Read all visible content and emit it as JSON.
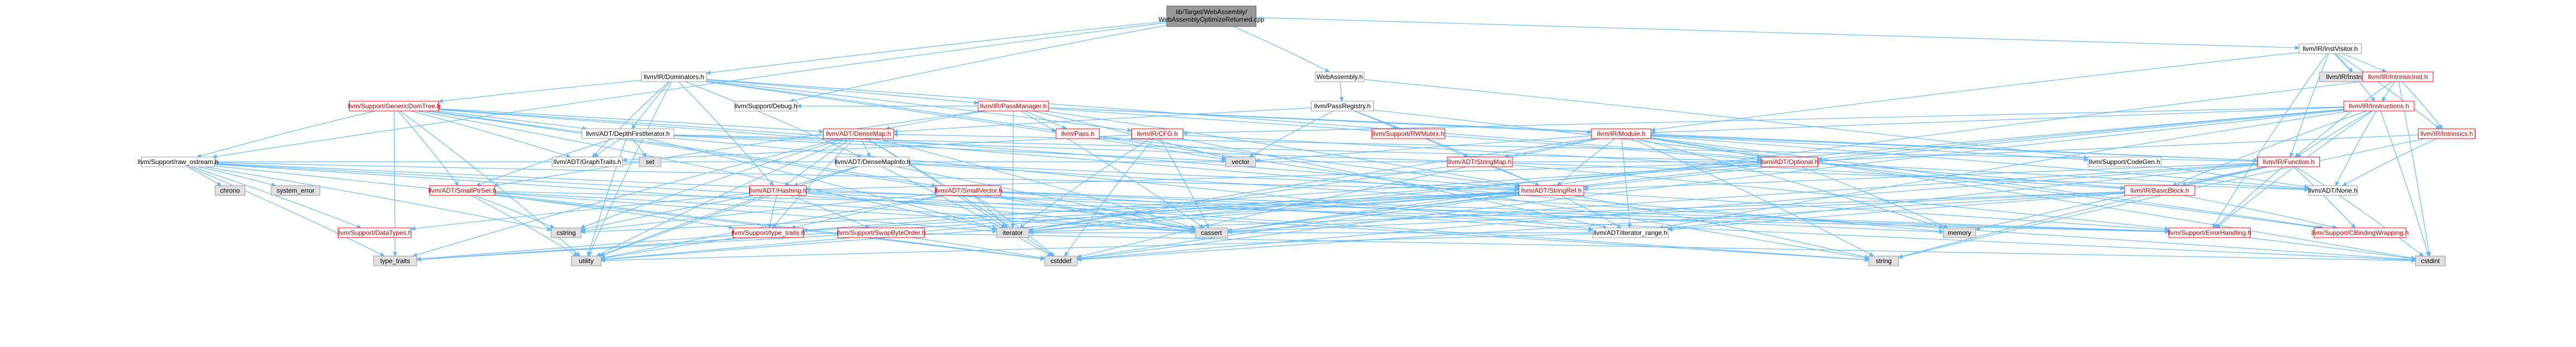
{
  "colors": {
    "edge": "#63b8ff",
    "node_border": "#999999",
    "root_fill": "#999999",
    "truncated_border": "#ff0000",
    "truncated_text": "#bf0000",
    "external_fill": "#e0e0e0"
  },
  "nodes": {
    "root": "lib/Target/WebAssembly/WebAssemblyOptimizeReturned.cpp",
    "dominators": "llvm/IR/Dominators.h",
    "instvisitor": "llvm/IR/InstVisitor.h",
    "webassembly": "WebAssembly.h",
    "raw_ostream": "llvm/Support/raw_ostream.h",
    "debug": "llvm/Support/Debug.h",
    "genericdomtree": "llvm/Support/GenericDomTree.h",
    "passmanager": "llvm/IR/PassManager.h",
    "passregistry": "llvm/PassRegistry.h",
    "instructiondef": "llvm/IR/Instruction.def",
    "intrinsicinst": "llvm/IR/IntrinsicInst.h",
    "instructions": "llvm/IR/Instructions.h",
    "intrinsics": "llvm/IR/Intrinsics.h",
    "depthfirst": "llvm/ADT/DepthFirstIterator.h",
    "densemap": "llvm/ADT/DenseMap.h",
    "pass": "llvm/Pass.h",
    "cfg": "llvm/IR/CFG.h",
    "pmutex": "llvm/Support/RWMutex.h",
    "module": "llvm/IR/Module.h",
    "codegen": "llvm/Support/CodeGen.h",
    "function": "llvm/IR/Function.h",
    "graphtraits": "llvm/ADT/GraphTraits.h",
    "set": "set",
    "vector": "vector",
    "densemapinfo": "llvm/ADT/DenseMapInfo.h",
    "stringmap": "llvm/ADT/StringMap.h",
    "optional": "llvm/ADT/Optional.h",
    "basicblock": "llvm/IR/BasicBlock.h",
    "none": "llvm/ADT/None.h",
    "smallptrset": "llvm/ADT/SmallPtrSet.h",
    "hashing": "llvm/ADT/Hashing.h",
    "smallvector": "llvm/ADT/SmallVector.h",
    "stringref": "llvm/ADT/StringRef.h",
    "chrono": "chrono",
    "system_error": "system_error",
    "datatypes": "llvm/Support/DataTypes.h",
    "cstring": "cstring",
    "type_traits_h": "llvm/Support/type_traits.h",
    "swapbyteorder": "llvm/Support/SwapByteOrder.h",
    "iterator": "iterator",
    "cassert": "cassert",
    "iterator_range": "llvm/ADT/iterator_range.h",
    "memory": "memory",
    "errorhandling": "llvm/Support/ErrorHandling.h",
    "cbindingwrapping": "llvm/Support/CBindingWrapping.h",
    "type_traits": "type_traits",
    "utility": "utility",
    "cstddef": "cstddef",
    "string": "string",
    "cstdint": "cstdint"
  },
  "edges": [
    [
      "root",
      "dominators"
    ],
    [
      "root",
      "instvisitor"
    ],
    [
      "root",
      "webassembly"
    ],
    [
      "root",
      "raw_ostream"
    ],
    [
      "root",
      "debug"
    ],
    [
      "dominators",
      "genericdomtree"
    ],
    [
      "dominators",
      "passmanager"
    ],
    [
      "dominators",
      "depthfirst"
    ],
    [
      "dominators",
      "graphtraits"
    ],
    [
      "dominators",
      "cfg"
    ],
    [
      "dominators",
      "pass"
    ],
    [
      "dominators",
      "hashing"
    ],
    [
      "dominators",
      "densemapinfo"
    ],
    [
      "dominators",
      "utility"
    ],
    [
      "dominators",
      "vector"
    ],
    [
      "dominators",
      "basicblock"
    ],
    [
      "instvisitor",
      "function"
    ],
    [
      "instvisitor",
      "instructions"
    ],
    [
      "instvisitor",
      "intrinsicinst"
    ],
    [
      "instvisitor",
      "intrinsics"
    ],
    [
      "instvisitor",
      "module"
    ],
    [
      "instvisitor",
      "errorhandling"
    ],
    [
      "instvisitor",
      "instructiondef"
    ],
    [
      "webassembly",
      "passregistry"
    ],
    [
      "webassembly",
      "codegen"
    ],
    [
      "raw_ostream",
      "stringref"
    ],
    [
      "raw_ostream",
      "datatypes"
    ],
    [
      "raw_ostream",
      "cassert"
    ],
    [
      "raw_ostream",
      "chrono"
    ],
    [
      "raw_ostream",
      "cstddef"
    ],
    [
      "raw_ostream",
      "cstdint"
    ],
    [
      "raw_ostream",
      "cstring"
    ],
    [
      "raw_ostream",
      "string"
    ],
    [
      "raw_ostream",
      "system_error"
    ],
    [
      "raw_ostream",
      "type_traits"
    ],
    [
      "raw_ostream",
      "optional"
    ],
    [
      "genericdomtree",
      "densemap"
    ],
    [
      "genericdomtree",
      "graphtraits"
    ],
    [
      "genericdomtree",
      "raw_ostream"
    ],
    [
      "genericdomtree",
      "smallptrset"
    ],
    [
      "genericdomtree",
      "smallvector"
    ],
    [
      "genericdomtree",
      "cassert"
    ],
    [
      "genericdomtree",
      "iterator"
    ],
    [
      "genericdomtree",
      "memory"
    ],
    [
      "genericdomtree",
      "type_traits"
    ],
    [
      "genericdomtree",
      "utility"
    ],
    [
      "genericdomtree",
      "depthfirst"
    ],
    [
      "genericdomtree",
      "stringref"
    ],
    [
      "passmanager",
      "densemap"
    ],
    [
      "passmanager",
      "function"
    ],
    [
      "passmanager",
      "module"
    ],
    [
      "passmanager",
      "pass"
    ],
    [
      "passmanager",
      "smallptrset"
    ],
    [
      "passmanager",
      "debug"
    ],
    [
      "passmanager",
      "typeid"
    ],
    [
      "passmanager",
      "vector"
    ],
    [
      "passmanager",
      "cassert"
    ],
    [
      "passmanager",
      "iterator"
    ],
    [
      "passmanager",
      "stringref"
    ],
    [
      "passmanager",
      "optional"
    ],
    [
      "passregistry",
      "densemap"
    ],
    [
      "passregistry",
      "stringmap"
    ],
    [
      "passregistry",
      "pmutex"
    ],
    [
      "passregistry",
      "cbindingwrapping"
    ],
    [
      "passregistry",
      "vector"
    ],
    [
      "passregistry",
      "stringref"
    ],
    [
      "intrinsicinst",
      "instructions"
    ],
    [
      "intrinsicinst",
      "function"
    ],
    [
      "intrinsicinst",
      "intrinsics"
    ],
    [
      "intrinsicinst",
      "cassert"
    ],
    [
      "intrinsicinst",
      "cstdint"
    ],
    [
      "instructions",
      "function"
    ],
    [
      "instructions",
      "module"
    ],
    [
      "instructions",
      "cfg"
    ],
    [
      "instructions",
      "none"
    ],
    [
      "instructions",
      "iterator_range"
    ],
    [
      "instructions",
      "stringref"
    ],
    [
      "instructions",
      "cstdint"
    ],
    [
      "instructions",
      "cstddef"
    ],
    [
      "instructions",
      "iterator"
    ],
    [
      "instructions",
      "errorhandling"
    ],
    [
      "instructions",
      "optional"
    ],
    [
      "instructions",
      "basicblock"
    ],
    [
      "intrinsics",
      "none"
    ],
    [
      "intrinsics",
      "optional"
    ],
    [
      "intrinsics",
      "string"
    ],
    [
      "depthfirst",
      "graphtraits"
    ],
    [
      "depthfirst",
      "none"
    ],
    [
      "depthfirst",
      "optional"
    ],
    [
      "depthfirst",
      "smallptrset"
    ],
    [
      "depthfirst",
      "iterator_range"
    ],
    [
      "depthfirst",
      "iterator"
    ],
    [
      "depthfirst",
      "set"
    ],
    [
      "depthfirst",
      "utility"
    ],
    [
      "depthfirst",
      "vector"
    ],
    [
      "densemap",
      "densemapinfo"
    ],
    [
      "densemap",
      "type_traits_h"
    ],
    [
      "densemap",
      "cassert"
    ],
    [
      "densemap",
      "cstddef"
    ],
    [
      "densemap",
      "cstring"
    ],
    [
      "densemap",
      "iterator"
    ],
    [
      "densemap",
      "new"
    ],
    [
      "densemap",
      "type_traits"
    ],
    [
      "densemap",
      "utility"
    ],
    [
      "densemap",
      "hashing"
    ],
    [
      "pass",
      "stringref"
    ],
    [
      "pass",
      "string"
    ],
    [
      "cfg",
      "graphtraits"
    ],
    [
      "cfg",
      "iterator_range"
    ],
    [
      "cfg",
      "basicblock"
    ],
    [
      "cfg",
      "cassert"
    ],
    [
      "cfg",
      "cstddef"
    ],
    [
      "cfg",
      "iterator"
    ],
    [
      "module",
      "stringmap"
    ],
    [
      "module",
      "stringref"
    ],
    [
      "module",
      "optional"
    ],
    [
      "module",
      "function"
    ],
    [
      "module",
      "codegen"
    ],
    [
      "module",
      "iterator_range"
    ],
    [
      "module",
      "cstddef"
    ],
    [
      "module",
      "cstdint"
    ],
    [
      "module",
      "iterator"
    ],
    [
      "module",
      "memory"
    ],
    [
      "module",
      "string"
    ],
    [
      "module",
      "vector"
    ],
    [
      "module",
      "cbindingwrapping"
    ],
    [
      "module",
      "none"
    ],
    [
      "function",
      "densemap"
    ],
    [
      "function",
      "stringref"
    ],
    [
      "function",
      "basicblock"
    ],
    [
      "function",
      "iterator_range"
    ],
    [
      "function",
      "cassert"
    ],
    [
      "function",
      "cstddef"
    ],
    [
      "function",
      "cstdint"
    ],
    [
      "function",
      "memory"
    ],
    [
      "function",
      "string"
    ],
    [
      "function",
      "cbindingwrapping"
    ],
    [
      "function",
      "errorhandling"
    ],
    [
      "densemapinfo",
      "hashing"
    ],
    [
      "densemapinfo",
      "stringref"
    ],
    [
      "densemapinfo",
      "cassert"
    ],
    [
      "densemapinfo",
      "cstddef"
    ],
    [
      "densemapinfo",
      "cstdint"
    ],
    [
      "densemapinfo",
      "utility"
    ],
    [
      "stringmap",
      "stringref"
    ],
    [
      "stringmap",
      "iterator"
    ],
    [
      "stringmap",
      "errorhandling"
    ],
    [
      "optional",
      "hashing"
    ],
    [
      "optional",
      "none"
    ],
    [
      "optional",
      "type_traits_h"
    ],
    [
      "optional",
      "cassert"
    ],
    [
      "optional",
      "memory"
    ],
    [
      "optional",
      "new"
    ],
    [
      "optional",
      "utility"
    ],
    [
      "basicblock",
      "iterator_range"
    ],
    [
      "basicblock",
      "cassert"
    ],
    [
      "basicblock",
      "cstddef"
    ],
    [
      "basicblock",
      "iterator"
    ],
    [
      "basicblock",
      "cbindingwrapping"
    ],
    [
      "smallptrset",
      "type_traits_h"
    ],
    [
      "smallptrset",
      "cassert"
    ],
    [
      "smallptrset",
      "cstddef"
    ],
    [
      "smallptrset",
      "cstring"
    ],
    [
      "smallptrset",
      "cstdlib"
    ],
    [
      "smallptrset",
      "iterator"
    ],
    [
      "smallptrset",
      "utility"
    ],
    [
      "smallptrset",
      "errorhandling"
    ],
    [
      "hashing",
      "errorhandling"
    ],
    [
      "hashing",
      "swapbyteorder"
    ],
    [
      "hashing",
      "type_traits_h"
    ],
    [
      "hashing",
      "cassert"
    ],
    [
      "hashing",
      "cstring"
    ],
    [
      "hashing",
      "string"
    ],
    [
      "hashing",
      "tuple"
    ],
    [
      "hashing",
      "utility"
    ],
    [
      "hashing",
      "datatypes"
    ],
    [
      "smallvector",
      "iterator_range"
    ],
    [
      "smallvector",
      "type_traits_h"
    ],
    [
      "smallvector",
      "cassert"
    ],
    [
      "smallvector",
      "cstddef"
    ],
    [
      "smallvector",
      "cstdlib"
    ],
    [
      "smallvector",
      "cstring"
    ],
    [
      "smallvector",
      "iterator"
    ],
    [
      "smallvector",
      "memory"
    ],
    [
      "smallvector",
      "utility"
    ],
    [
      "smallvector",
      "errorhandling"
    ],
    [
      "stringref",
      "iterator_range"
    ],
    [
      "stringref",
      "type_traits_h"
    ],
    [
      "stringref",
      "cassert"
    ],
    [
      "stringref",
      "cstddef"
    ],
    [
      "stringref",
      "cstring"
    ],
    [
      "stringref",
      "iterator"
    ],
    [
      "stringref",
      "string"
    ],
    [
      "stringref",
      "type_traits"
    ],
    [
      "stringref",
      "utility"
    ],
    [
      "stringref",
      "errorhandling"
    ],
    [
      "type_traits_h",
      "type_traits"
    ],
    [
      "type_traits_h",
      "utility"
    ],
    [
      "swapbyteorder",
      "cstddef"
    ],
    [
      "swapbyteorder",
      "cstdint"
    ],
    [
      "swapbyteorder",
      "type_traits"
    ],
    [
      "iterator_range",
      "iterator"
    ],
    [
      "iterator_range",
      "utility"
    ],
    [
      "errorhandling",
      "cstdint"
    ],
    [
      "codegen",
      "none"
    ]
  ]
}
